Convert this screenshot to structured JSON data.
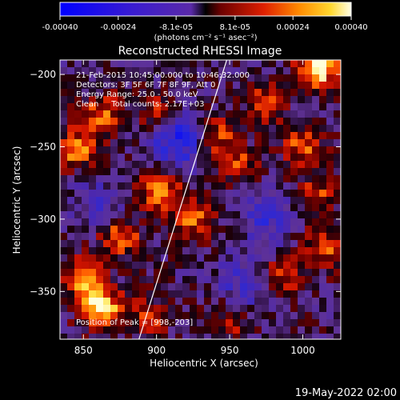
{
  "colorbar": {
    "ticks": [
      "-0.00040",
      "-0.00024",
      "-8.1e-05",
      "8.1e-05",
      "0.00024",
      "0.00040"
    ],
    "tick_values": [
      -0.0004,
      -0.00024,
      -8.1e-05,
      8.1e-05,
      0.00024,
      0.0004
    ],
    "range": [
      -0.0004,
      0.0004
    ],
    "unit_label": "(photons cm⁻² s⁻¹ asec⁻²)"
  },
  "chart_data": {
    "type": "heatmap",
    "title": "Reconstructed RHESSI Image",
    "xlabel": "Heliocentric X (arcsec)",
    "ylabel": "Heliocentric Y (arcsec)",
    "xlim": [
      834,
      1026
    ],
    "ylim": [
      -383,
      -190
    ],
    "xticks": [
      850,
      900,
      950,
      1000
    ],
    "xtick_labels": [
      "850",
      "900",
      "950",
      "1000"
    ],
    "yticks": [
      -350,
      -300,
      -250,
      -200
    ],
    "ytick_labels": [
      "−350",
      "−300",
      "−250",
      "−200"
    ],
    "limb_line": [
      [
        888,
        -383
      ],
      [
        948,
        -190
      ]
    ],
    "hotspots": [
      {
        "x": 1010,
        "y": -196,
        "level": 1.0
      },
      {
        "x": 862,
        "y": -362,
        "level": 0.95
      },
      {
        "x": 850,
        "y": -340,
        "level": 0.7
      },
      {
        "x": 875,
        "y": -312,
        "level": 0.6
      },
      {
        "x": 845,
        "y": -252,
        "level": 0.65
      },
      {
        "x": 862,
        "y": -228,
        "level": 0.55
      },
      {
        "x": 902,
        "y": -280,
        "level": 0.7
      },
      {
        "x": 925,
        "y": -300,
        "level": 0.55
      },
      {
        "x": 900,
        "y": -228,
        "level": 0.45
      },
      {
        "x": 940,
        "y": -243,
        "level": 0.5
      },
      {
        "x": 955,
        "y": -262,
        "level": 0.45
      },
      {
        "x": 1000,
        "y": -250,
        "level": 0.55
      },
      {
        "x": 975,
        "y": -220,
        "level": 0.5
      },
      {
        "x": 1015,
        "y": -320,
        "level": 0.55
      },
      {
        "x": 985,
        "y": -340,
        "level": 0.45
      },
      {
        "x": 1010,
        "y": -283,
        "level": 0.45
      },
      {
        "x": 895,
        "y": -368,
        "level": 0.4
      },
      {
        "x": 950,
        "y": -370,
        "level": 0.35
      }
    ],
    "coldspots": [
      {
        "x": 915,
        "y": -245,
        "level": -0.75
      },
      {
        "x": 975,
        "y": -300,
        "level": -0.45
      },
      {
        "x": 860,
        "y": -290,
        "level": -0.35
      },
      {
        "x": 960,
        "y": -345,
        "level": -0.45
      }
    ],
    "annotations": {
      "time": "21-Feb-2015 10:45:00.000 to 10:46:32.000",
      "detectors": "Detectors: 3F 5F 6F 7F 8F 9F, Att 0",
      "energy": "Energy Range: 25.0 - 50.0 keV",
      "clean": "Clean     Total counts: 2.17E+03",
      "peak": "Position of Peak = [998,-203]"
    }
  },
  "footer": {
    "date": "19-May-2022 02:00"
  }
}
